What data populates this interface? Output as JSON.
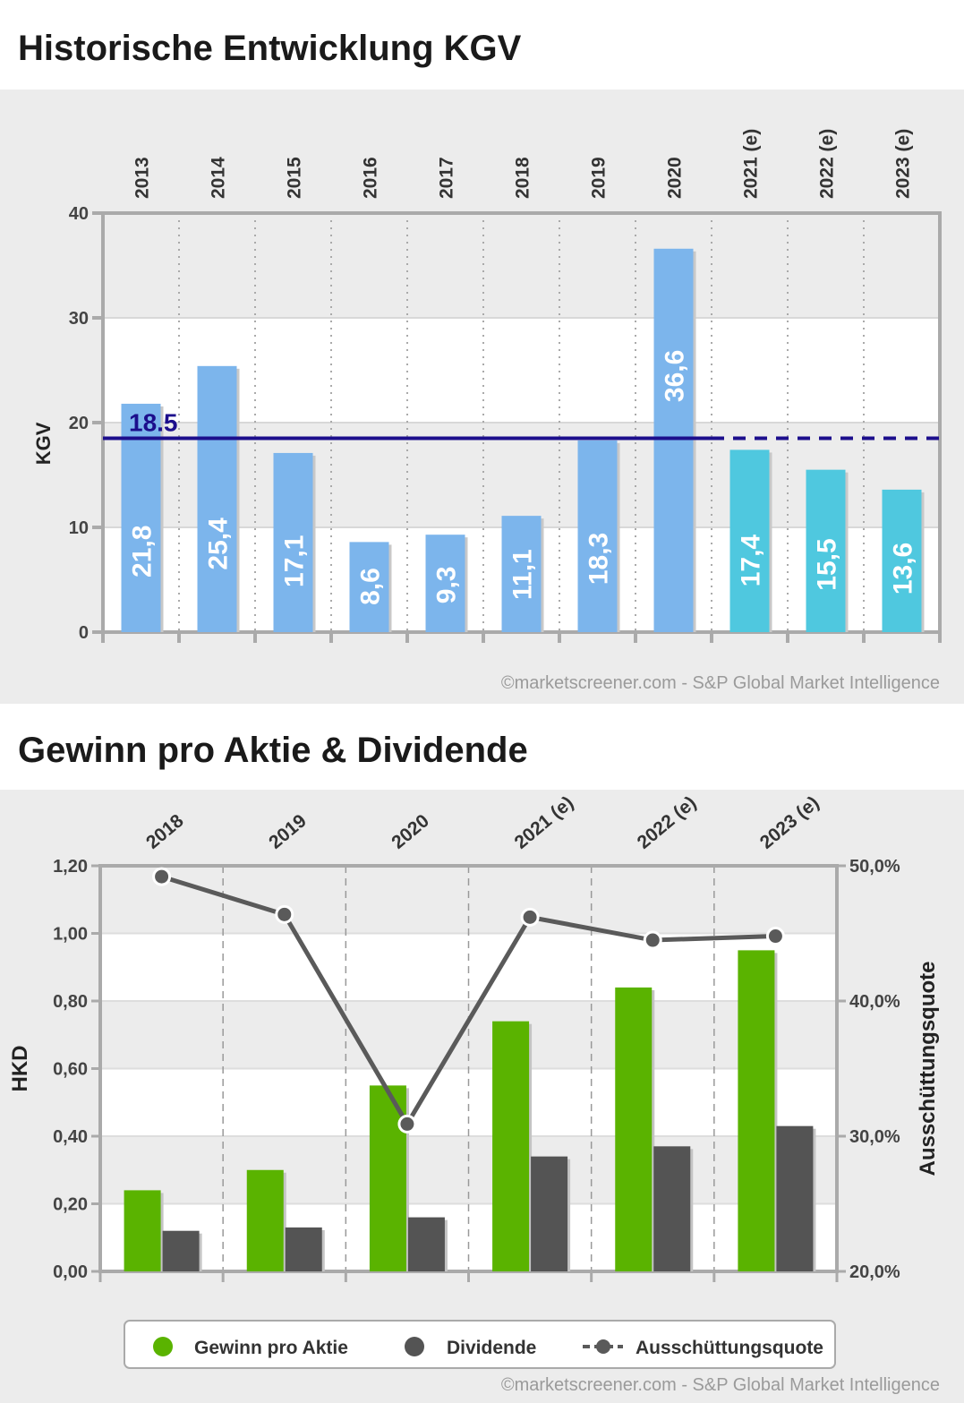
{
  "chart_data": [
    {
      "type": "bar",
      "title": "Historische Entwicklung KGV",
      "ylabel": "KGV",
      "ylim": [
        0,
        40
      ],
      "yticks": [
        "0",
        "10",
        "20",
        "30",
        "40"
      ],
      "categories": [
        "2013",
        "2014",
        "2015",
        "2016",
        "2017",
        "2018",
        "2019",
        "2020",
        "2021 (e)",
        "2022 (e)",
        "2023 (e)"
      ],
      "values": [
        21.8,
        25.4,
        17.1,
        8.6,
        9.3,
        11.1,
        18.3,
        36.6,
        17.4,
        15.5,
        13.6
      ],
      "value_labels": [
        "21,8",
        "25,4",
        "17,1",
        "8,6",
        "9,3",
        "11,1",
        "18,3",
        "36,6",
        "17,4",
        "15,5",
        "13,6"
      ],
      "estimate": [
        false,
        false,
        false,
        false,
        false,
        false,
        false,
        false,
        true,
        true,
        true
      ],
      "average": {
        "value": 18.5,
        "label": "18.5"
      },
      "colors": {
        "historic": "#7cb5ec",
        "estimate": "#4fc8df",
        "average": "#1c0e8c"
      },
      "credit": "©marketscreener.com - S&P Global Market Intelligence"
    },
    {
      "type": "bar",
      "title": "Gewinn pro Aktie & Dividende",
      "ylabel": "HKD",
      "y2label": "Ausschüttungsquote",
      "ylim": [
        0,
        1.2
      ],
      "y2lim": [
        20,
        50
      ],
      "yticks": [
        "0,00",
        "0,20",
        "0,40",
        "0,60",
        "0,80",
        "1,00",
        "1,20"
      ],
      "y2ticks": [
        "20,0%",
        "30,0%",
        "40,0%",
        "50,0%"
      ],
      "categories": [
        "2018",
        "2019",
        "2020",
        "2021 (e)",
        "2022 (e)",
        "2023 (e)"
      ],
      "series": [
        {
          "name": "Gewinn pro Aktie",
          "type": "bar",
          "color": "#5ab300",
          "values": [
            0.24,
            0.3,
            0.55,
            0.74,
            0.84,
            0.95
          ]
        },
        {
          "name": "Dividende",
          "type": "bar",
          "color": "#545454",
          "values": [
            0.12,
            0.13,
            0.16,
            0.34,
            0.37,
            0.43
          ]
        },
        {
          "name": "Ausschüttungsquote",
          "type": "line",
          "axis": "right",
          "color": "#5a5a5a",
          "values": [
            49.2,
            46.4,
            30.9,
            46.2,
            44.5,
            44.8
          ]
        }
      ],
      "legend": "bottom",
      "credit": "©marketscreener.com - S&P Global Market Intelligence"
    }
  ]
}
